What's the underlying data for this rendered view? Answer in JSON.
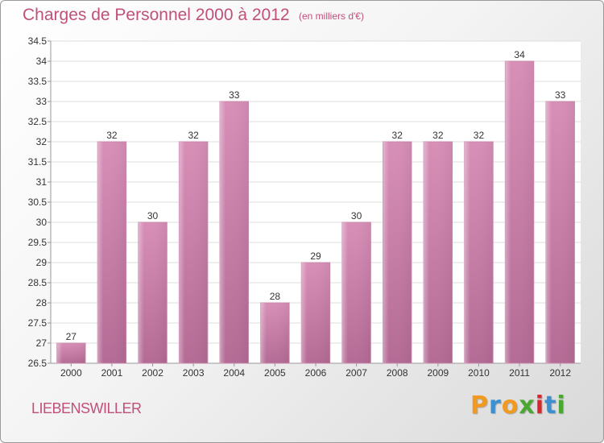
{
  "chart_data": {
    "type": "bar",
    "title": "Charges de Personnel 2000 à 2012",
    "subtitle": "(en milliers d'€)",
    "categories": [
      "2000",
      "2001",
      "2002",
      "2003",
      "2004",
      "2005",
      "2006",
      "2007",
      "2008",
      "2009",
      "2010",
      "2011",
      "2012"
    ],
    "values": [
      27,
      32,
      30,
      32,
      33,
      28,
      29,
      30,
      32,
      32,
      32,
      34,
      33
    ],
    "value_labels": [
      "27",
      "32",
      "30",
      "32",
      "33",
      "28",
      "29",
      "30",
      "32",
      "32",
      "32",
      "34",
      "33"
    ],
    "ylim": [
      26.5,
      34.5
    ],
    "yticks": [
      26.5,
      27,
      27.5,
      28,
      28.5,
      29,
      29.5,
      30,
      30.5,
      31,
      31.5,
      32,
      32.5,
      33,
      33.5,
      34,
      34.5
    ],
    "ytick_labels": [
      "26.5",
      "27",
      "27.5",
      "28",
      "28.5",
      "29",
      "29.5",
      "30",
      "30.5",
      "31",
      "31.5",
      "32",
      "32.5",
      "33",
      "33.5",
      "34",
      "34.5"
    ],
    "grid": true,
    "bar_color": "#d88fb7",
    "bar_color_dark": "#b46b95"
  },
  "footer": {
    "city": "LIEBENSWILLER",
    "logo_letters": [
      "P",
      "r",
      "o",
      "x",
      "i",
      "t",
      "i"
    ],
    "logo_colors": [
      "#f29a1f",
      "#3c8fd0",
      "#f29a1f",
      "#4aa832",
      "#d7262c",
      "#3c8fd0",
      "#4aa832"
    ]
  },
  "colors": {
    "accent": "#c0507a"
  }
}
